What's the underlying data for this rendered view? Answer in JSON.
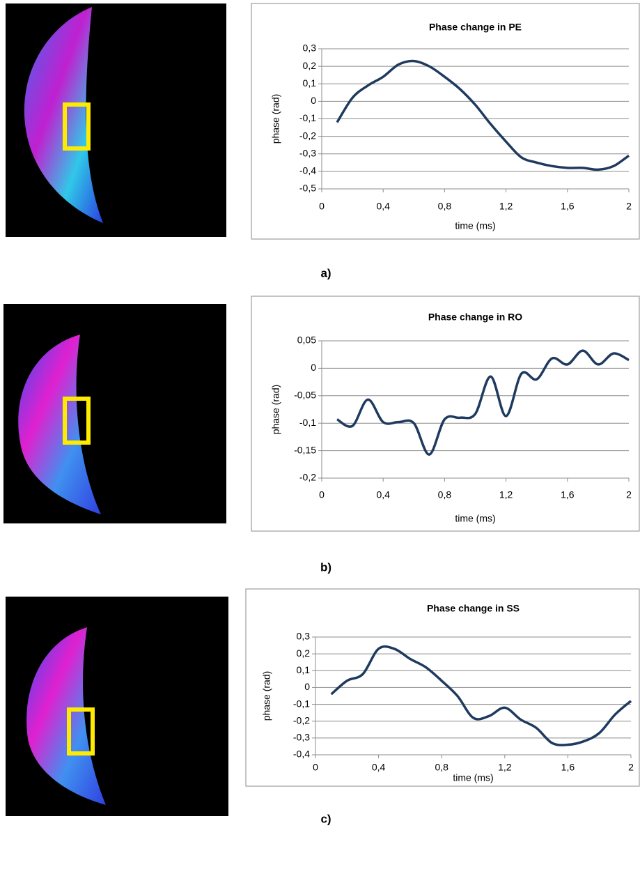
{
  "chart_data": [
    {
      "type": "line",
      "title": "Phase change in PE",
      "x_label": "time (ms)",
      "y_label": "phase (rad)",
      "panel_label": "a)",
      "x": [
        0.1,
        0.2,
        0.3,
        0.4,
        0.5,
        0.6,
        0.7,
        0.8,
        0.9,
        1.0,
        1.1,
        1.2,
        1.3,
        1.4,
        1.5,
        1.6,
        1.7,
        1.8,
        1.9,
        2.0
      ],
      "series": [
        {
          "color": "#1f3a5f",
          "values": [
            -0.12,
            0.02,
            0.09,
            0.14,
            0.21,
            0.23,
            0.2,
            0.14,
            0.07,
            -0.02,
            -0.13,
            -0.23,
            -0.32,
            -0.35,
            -0.37,
            -0.38,
            -0.38,
            -0.39,
            -0.37,
            -0.31
          ]
        }
      ],
      "xlim": [
        0,
        2
      ],
      "xticks": [
        0,
        {
          "value": 0.4,
          "label": "0,4"
        },
        {
          "value": 0.8,
          "label": "0,8"
        },
        {
          "value": 1.2,
          "label": "1,2"
        },
        {
          "value": 1.6,
          "label": "1,6"
        },
        2
      ],
      "ylim": [
        -0.5,
        0.3
      ],
      "yticks": [
        {
          "value": 0.3,
          "label": "0,3"
        },
        {
          "value": 0.2,
          "label": "0,2"
        },
        {
          "value": 0.1,
          "label": "0,1"
        },
        0,
        {
          "value": -0.1,
          "label": "-0,1"
        },
        {
          "value": -0.2,
          "label": "-0,2"
        },
        {
          "value": -0.3,
          "label": "-0,3"
        },
        {
          "value": -0.4,
          "label": "-0,4"
        },
        {
          "value": -0.5,
          "label": "-0,5"
        }
      ],
      "grid": true
    },
    {
      "type": "line",
      "title": "Phase change in RO",
      "x_label": "time (ms)",
      "y_label": "phase (rad)",
      "panel_label": "b)",
      "x": [
        0.1,
        0.2,
        0.3,
        0.4,
        0.5,
        0.6,
        0.7,
        0.8,
        0.9,
        1.0,
        1.1,
        1.2,
        1.3,
        1.4,
        1.5,
        1.6,
        1.7,
        1.8,
        1.9,
        2.0
      ],
      "series": [
        {
          "color": "#1f3a5f",
          "values": [
            -0.093,
            -0.105,
            -0.057,
            -0.098,
            -0.098,
            -0.1,
            -0.157,
            -0.093,
            -0.09,
            -0.083,
            -0.015,
            -0.087,
            -0.01,
            -0.02,
            0.018,
            0.007,
            0.032,
            0.007,
            0.027,
            0.015
          ]
        }
      ],
      "xlim": [
        0,
        2
      ],
      "xticks": [
        0,
        {
          "value": 0.4,
          "label": "0,4"
        },
        {
          "value": 0.8,
          "label": "0,8"
        },
        {
          "value": 1.2,
          "label": "1,2"
        },
        {
          "value": 1.6,
          "label": "1,6"
        },
        2
      ],
      "ylim": [
        -0.2,
        0.05
      ],
      "yticks": [
        {
          "value": 0.05,
          "label": "0,05"
        },
        0,
        {
          "value": -0.05,
          "label": "-0,05"
        },
        {
          "value": -0.1,
          "label": "-0,1"
        },
        {
          "value": -0.15,
          "label": "-0,15"
        },
        {
          "value": -0.2,
          "label": "-0,2"
        }
      ],
      "grid": true
    },
    {
      "type": "line",
      "title": "Phase change in SS",
      "x_label": "time (ms)",
      "y_label": "phase (rad)",
      "panel_label": "c)",
      "x": [
        0.1,
        0.2,
        0.3,
        0.4,
        0.5,
        0.6,
        0.7,
        0.8,
        0.9,
        1.0,
        1.1,
        1.2,
        1.3,
        1.4,
        1.5,
        1.6,
        1.7,
        1.8,
        1.9,
        2.0
      ],
      "series": [
        {
          "color": "#1f3a5f",
          "values": [
            -0.04,
            0.04,
            0.08,
            0.23,
            0.23,
            0.17,
            0.12,
            0.04,
            -0.05,
            -0.18,
            -0.17,
            -0.12,
            -0.19,
            -0.24,
            -0.33,
            -0.34,
            -0.32,
            -0.27,
            -0.16,
            -0.08
          ]
        }
      ],
      "xlim": [
        0,
        2
      ],
      "xticks": [
        0,
        {
          "value": 0.4,
          "label": "0,4"
        },
        {
          "value": 0.8,
          "label": "0,8"
        },
        {
          "value": 1.2,
          "label": "1,2"
        },
        {
          "value": 1.6,
          "label": "1,6"
        },
        2
      ],
      "ylim": [
        -0.4,
        0.3
      ],
      "yticks": [
        {
          "value": 0.3,
          "label": "0,3"
        },
        {
          "value": 0.2,
          "label": "0,2"
        },
        {
          "value": 0.1,
          "label": "0,1"
        },
        0,
        {
          "value": -0.1,
          "label": "-0,1"
        },
        {
          "value": -0.2,
          "label": "-0,2"
        },
        {
          "value": -0.3,
          "label": "-0,3"
        },
        {
          "value": -0.4,
          "label": "-0,4"
        }
      ],
      "grid": true
    }
  ]
}
